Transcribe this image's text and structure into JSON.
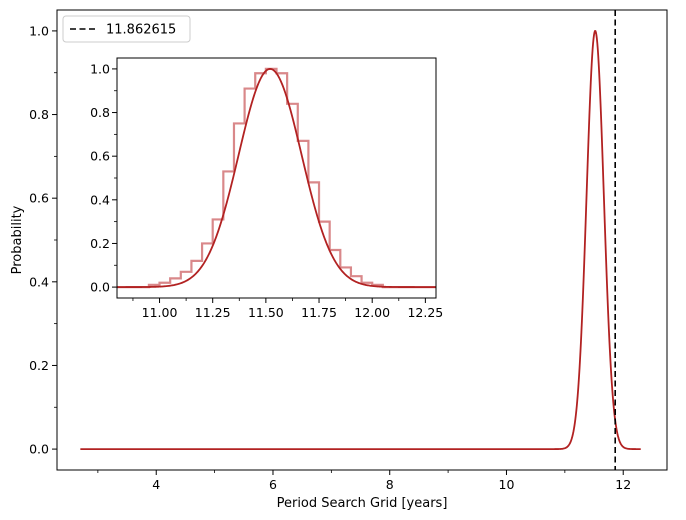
{
  "chart_data": [
    {
      "type": "line",
      "title": "",
      "xlabel": "Period Search Grid [years]",
      "ylabel": "Probability",
      "xlim": [
        2.3,
        12.75
      ],
      "ylim": [
        -0.05,
        1.05
      ],
      "x_ticks": [
        4,
        6,
        8,
        10,
        12
      ],
      "y_ticks": [
        0.0,
        0.2,
        0.4,
        0.6,
        0.8,
        1.0
      ],
      "x_tick_labels": [
        "4",
        "6",
        "8",
        "10",
        "12"
      ],
      "y_tick_labels": [
        "0.0",
        "0.2",
        "0.4",
        "0.6",
        "0.8",
        "1.0"
      ],
      "grid": false,
      "legend_position": "upper-left",
      "series": [
        {
          "kind": "curve",
          "color": "#b22222",
          "shape": "gaussian",
          "peak_x": 11.52,
          "peak_y": 1.0,
          "sigma": 0.148,
          "x_range": [
            2.7,
            12.3
          ]
        }
      ],
      "vertical_lines": [
        {
          "name": "11.862615",
          "x": 11.862615,
          "style": "dashed",
          "color": "#000000"
        }
      ]
    },
    {
      "type": "line",
      "inset": true,
      "title": "",
      "xlabel": "",
      "ylabel": "",
      "xlim": [
        10.8,
        12.3
      ],
      "ylim": [
        -0.05,
        1.05
      ],
      "x_ticks": [
        11.0,
        11.25,
        11.5,
        11.75,
        12.0,
        12.25
      ],
      "y_ticks": [
        0.0,
        0.2,
        0.4,
        0.6,
        0.8,
        1.0
      ],
      "x_tick_labels": [
        "11.00",
        "11.25",
        "11.50",
        "11.75",
        "12.00",
        "12.25"
      ],
      "y_tick_labels": [
        "0.0",
        "0.2",
        "0.4",
        "0.6",
        "0.8",
        "1.0"
      ],
      "grid": false,
      "series": [
        {
          "kind": "step-histogram",
          "color": "#d9888a",
          "bin_edges": [
            10.8,
            10.85,
            10.9,
            10.95,
            11.0,
            11.05,
            11.1,
            11.15,
            11.2,
            11.25,
            11.3,
            11.35,
            11.4,
            11.45,
            11.5,
            11.55,
            11.6,
            11.65,
            11.7,
            11.75,
            11.8,
            11.85,
            11.9,
            11.95,
            12.0,
            12.05,
            12.1,
            12.15,
            12.2,
            12.25,
            12.3
          ],
          "values": [
            0.0,
            0.0,
            0.0,
            0.01,
            0.02,
            0.04,
            0.07,
            0.12,
            0.2,
            0.31,
            0.53,
            0.75,
            0.91,
            0.98,
            1.0,
            0.98,
            0.84,
            0.67,
            0.48,
            0.3,
            0.17,
            0.09,
            0.05,
            0.02,
            0.01,
            0.0,
            0.0,
            0.0,
            0.0,
            0.0
          ]
        },
        {
          "kind": "curve",
          "color": "#b22222",
          "shape": "gaussian",
          "peak_x": 11.52,
          "peak_y": 1.0,
          "sigma": 0.148,
          "x_range": [
            10.8,
            12.3
          ]
        }
      ]
    }
  ]
}
